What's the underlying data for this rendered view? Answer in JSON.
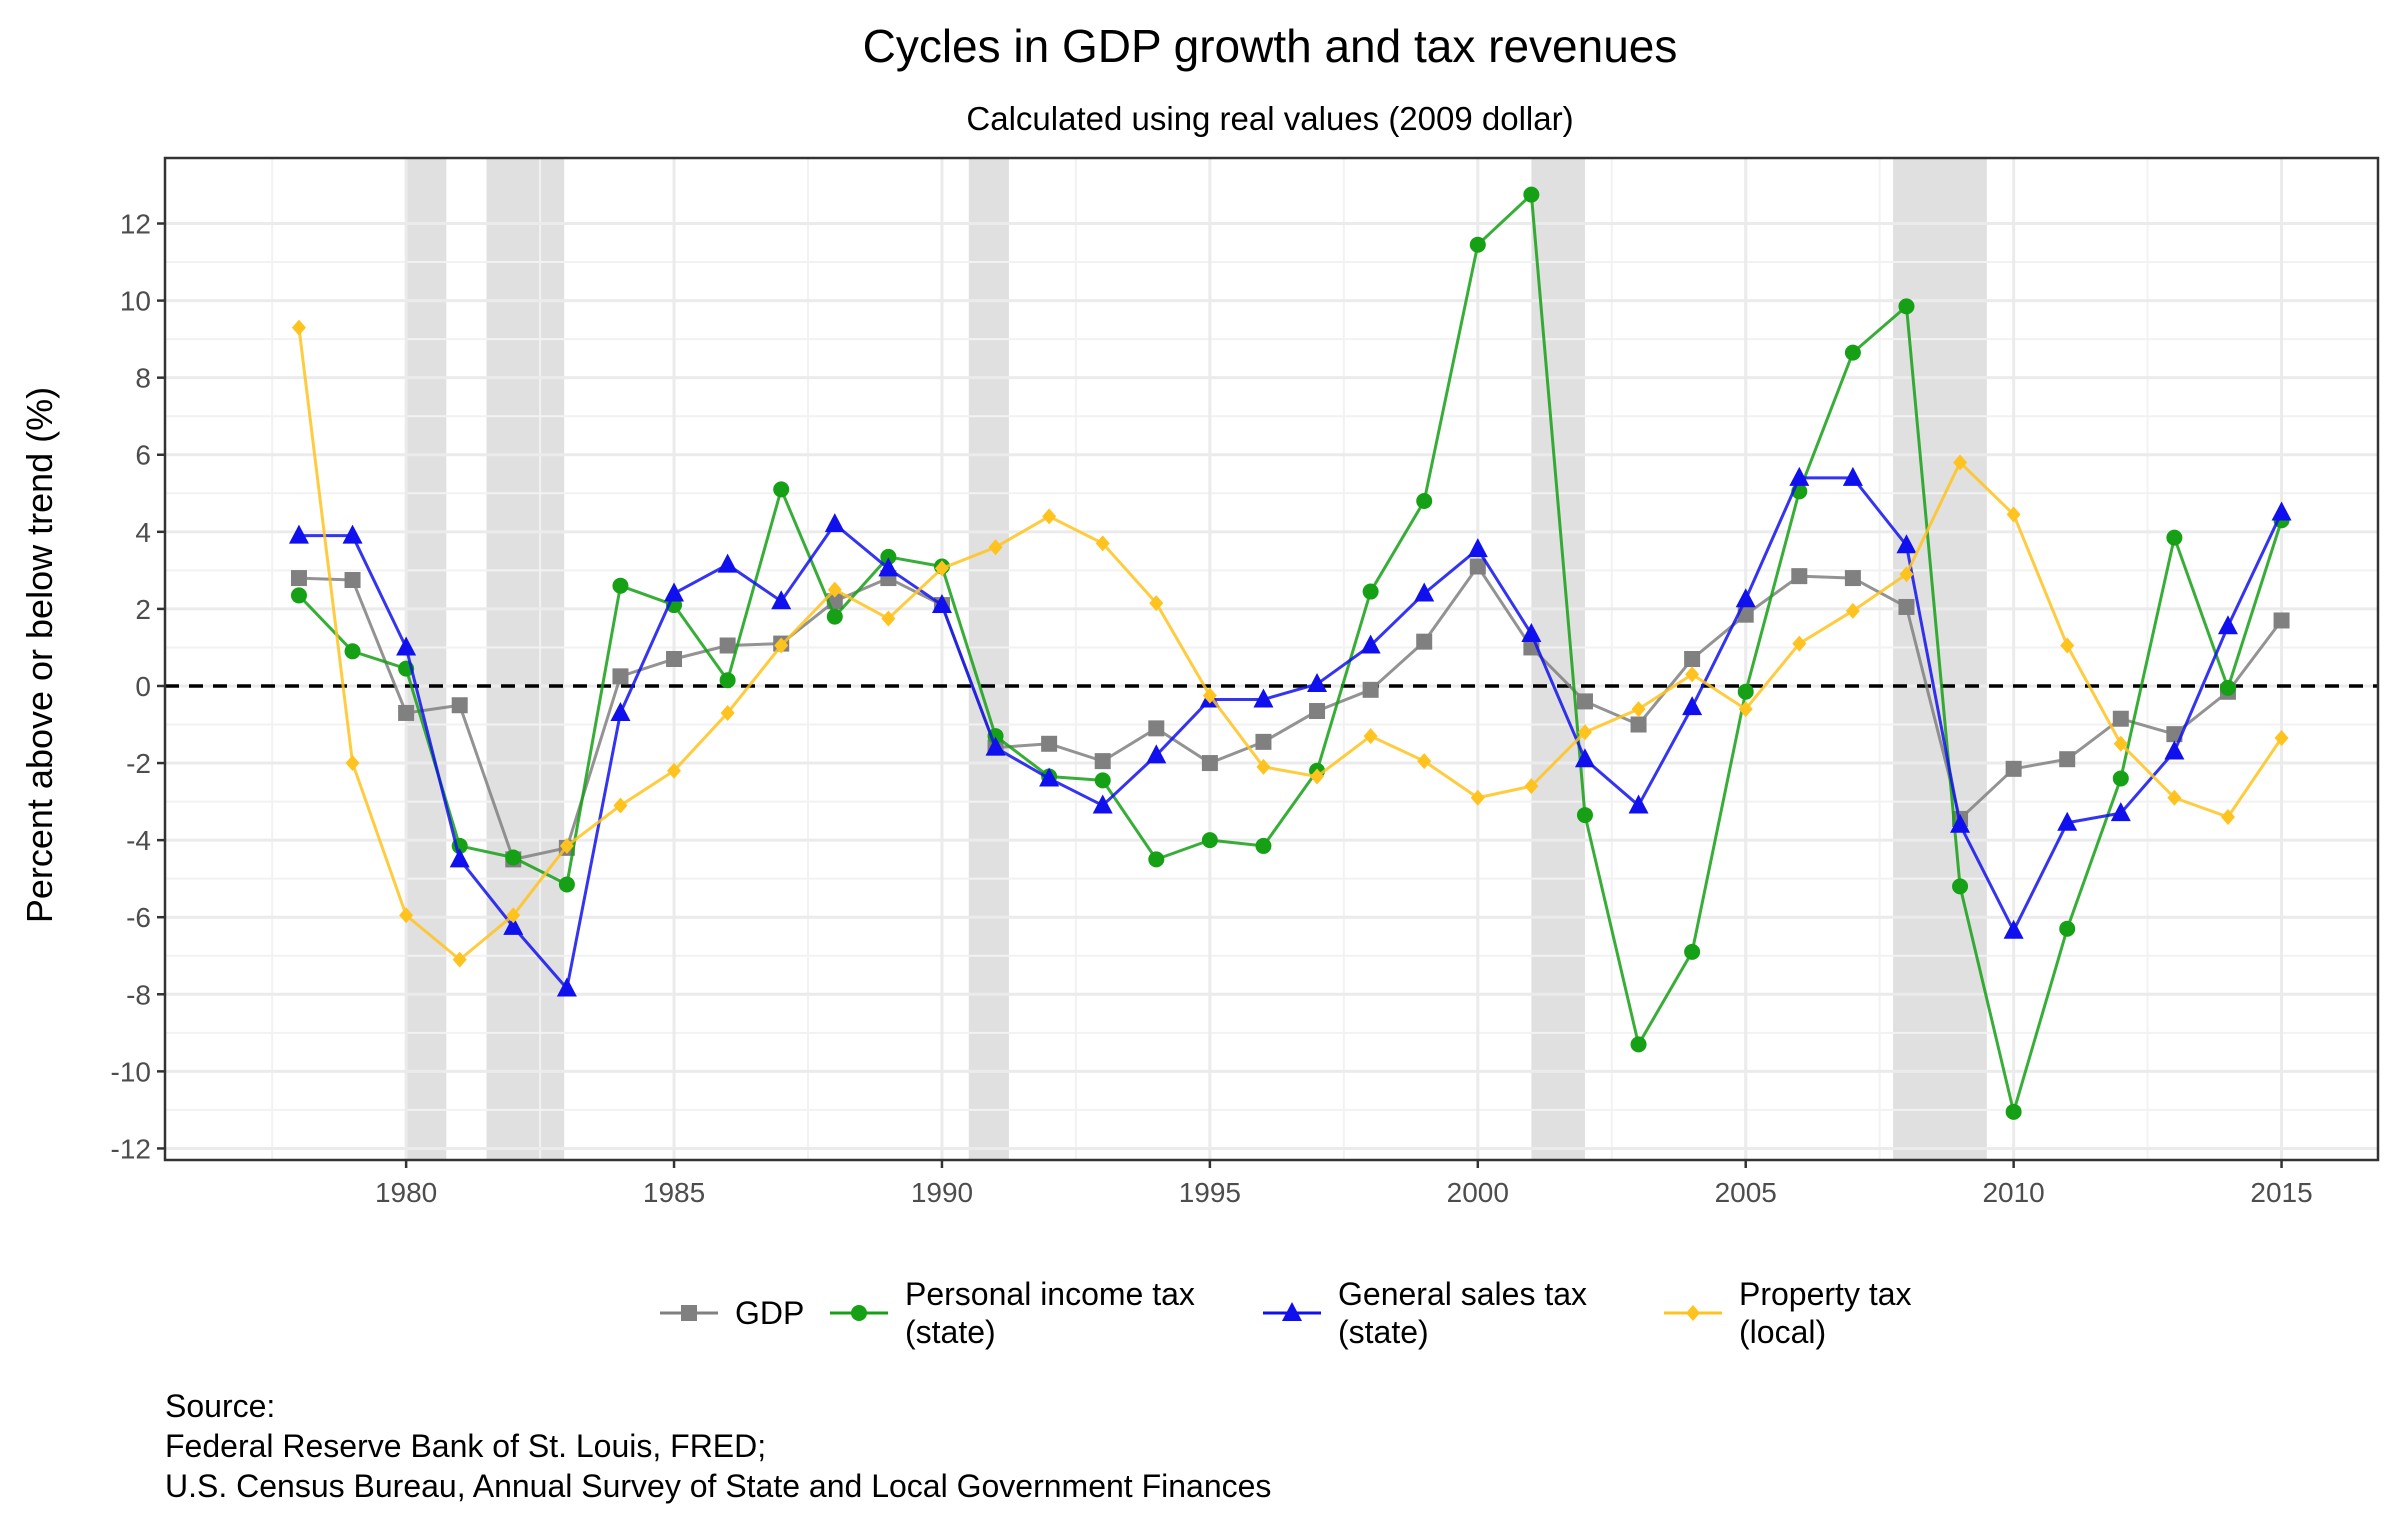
{
  "chart_data": {
    "type": "line",
    "title": "Cycles in GDP growth and tax revenues",
    "subtitle": "Calculated using real values (2009 dollar)",
    "ylabel": "Percent above or below trend (%)",
    "xlabel": "",
    "xlim": [
      1975.5,
      2016.8
    ],
    "ylim": [
      -12.3,
      13.7
    ],
    "x_ticks": [
      1980,
      1985,
      1990,
      1995,
      2000,
      2005,
      2010,
      2015
    ],
    "y_ticks": [
      -12,
      -10,
      -8,
      -6,
      -4,
      -2,
      0,
      2,
      4,
      6,
      8,
      10,
      12
    ],
    "grid": true,
    "reference_line": {
      "y": 0,
      "style": "dashed"
    },
    "recessions": [
      [
        1980.0,
        1980.75
      ],
      [
        1981.5,
        1982.95
      ],
      [
        1990.5,
        1991.25
      ],
      [
        2001.0,
        2002.0
      ],
      [
        2007.75,
        2009.5
      ]
    ],
    "x": [
      1978,
      1979,
      1980,
      1981,
      1982,
      1983,
      1984,
      1985,
      1986,
      1987,
      1988,
      1989,
      1990,
      1991,
      1992,
      1993,
      1994,
      1995,
      1996,
      1997,
      1998,
      1999,
      2000,
      2001,
      2002,
      2003,
      2004,
      2005,
      2006,
      2007,
      2008,
      2009,
      2010,
      2011,
      2012,
      2013,
      2014,
      2015
    ],
    "series": [
      {
        "name": "GDP",
        "color": "#808080",
        "marker": "square",
        "values": [
          2.8,
          2.75,
          -0.7,
          -0.5,
          -4.5,
          -4.2,
          0.25,
          0.7,
          1.05,
          1.1,
          2.2,
          2.8,
          2.1,
          -1.6,
          -1.5,
          -1.95,
          -1.1,
          -2.0,
          -1.45,
          -0.65,
          -0.1,
          1.15,
          3.1,
          1.0,
          -0.4,
          -1.0,
          0.7,
          1.85,
          2.85,
          2.8,
          2.05,
          -3.45,
          -2.15,
          -1.9,
          -0.85,
          -1.25,
          -0.15,
          1.7
        ]
      },
      {
        "name": "Personal income tax (state)",
        "color": "#15a015",
        "marker": "circle",
        "values": [
          2.35,
          0.9,
          0.45,
          -4.15,
          -4.45,
          -5.15,
          2.6,
          2.1,
          0.15,
          5.1,
          1.8,
          3.35,
          3.1,
          -1.3,
          -2.35,
          -2.45,
          -4.5,
          -4.0,
          -4.15,
          -2.2,
          2.45,
          4.8,
          11.45,
          12.75,
          -3.35,
          -9.3,
          -6.9,
          -0.15,
          5.05,
          8.65,
          9.85,
          -5.2,
          -11.05,
          -6.3,
          -2.4,
          3.85,
          -0.05,
          4.3
        ]
      },
      {
        "name": "General sales tax (state)",
        "color": "#1010ee",
        "marker": "triangle",
        "values": [
          3.9,
          3.9,
          1.0,
          -4.5,
          -6.25,
          -7.85,
          -0.7,
          2.4,
          3.15,
          2.2,
          4.2,
          3.05,
          2.1,
          -1.6,
          -2.4,
          -3.1,
          -1.8,
          -0.35,
          -0.35,
          0.05,
          1.05,
          2.4,
          3.55,
          1.35,
          -1.9,
          -3.1,
          -0.55,
          2.25,
          5.4,
          5.4,
          3.65,
          -3.6,
          -6.35,
          -3.55,
          -3.3,
          -1.7,
          1.55,
          4.5
        ]
      },
      {
        "name": "Property tax (local)",
        "color": "#ffc31f",
        "marker": "diamond",
        "values": [
          9.3,
          -2.0,
          -5.95,
          -7.1,
          -5.95,
          -4.15,
          -3.1,
          -2.2,
          -0.7,
          1.05,
          2.5,
          1.75,
          3.05,
          3.6,
          4.4,
          3.7,
          2.15,
          -0.25,
          -2.1,
          -2.35,
          -1.3,
          -1.95,
          -2.9,
          -2.6,
          -1.2,
          -0.6,
          0.3,
          -0.6,
          1.1,
          1.95,
          2.9,
          5.8,
          4.45,
          1.05,
          -1.5,
          -2.9,
          -3.4,
          -1.35
        ]
      }
    ]
  },
  "legend": [
    {
      "lines": [
        "GDP"
      ]
    },
    {
      "lines": [
        "Personal income tax",
        "(state)"
      ]
    },
    {
      "lines": [
        "General sales tax",
        "(state)"
      ]
    },
    {
      "lines": [
        "Property tax",
        "(local)"
      ]
    }
  ],
  "source": {
    "heading": "Source:",
    "line1": "Federal Reserve Bank of St. Louis, FRED;",
    "line2": "U.S. Census Bureau, Annual Survey of State and Local Government Finances"
  }
}
